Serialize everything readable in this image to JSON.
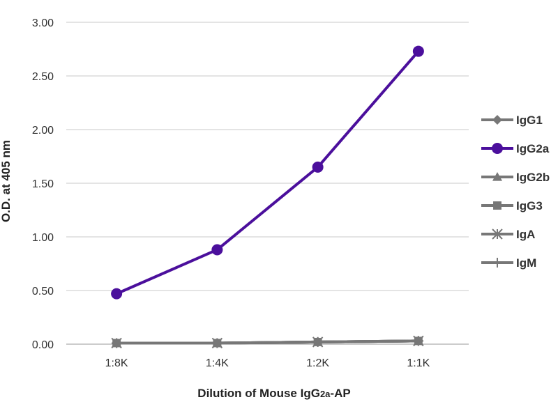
{
  "chart_data": {
    "type": "line",
    "title": "",
    "xlabel_main": "Dilution of Mouse IgG",
    "xlabel_sub": "2a",
    "xlabel_suffix": "-AP",
    "ylabel": "O.D. at 405 nm",
    "categories": [
      "1:8K",
      "1:4K",
      "1:2K",
      "1:1K"
    ],
    "ylim": [
      0,
      3
    ],
    "yticks": [
      "0.00",
      "0.50",
      "1.00",
      "1.50",
      "2.00",
      "2.50",
      "3.00"
    ],
    "grid": "horizontal",
    "legend_position": "right",
    "series": [
      {
        "name": "IgG1",
        "values": [
          0.01,
          0.01,
          0.02,
          0.03
        ],
        "color": "#777777",
        "marker": "diamond"
      },
      {
        "name": "IgG2a",
        "values": [
          0.47,
          0.88,
          1.65,
          2.73
        ],
        "color": "#4b0f9c",
        "marker": "circle"
      },
      {
        "name": "IgG2b",
        "values": [
          0.01,
          0.01,
          0.02,
          0.03
        ],
        "color": "#777777",
        "marker": "triangle"
      },
      {
        "name": "IgG3",
        "values": [
          0.01,
          0.01,
          0.02,
          0.03
        ],
        "color": "#777777",
        "marker": "square"
      },
      {
        "name": "IgA",
        "values": [
          0.01,
          0.01,
          0.02,
          0.03
        ],
        "color": "#777777",
        "marker": "star"
      },
      {
        "name": "IgM",
        "values": [
          0.01,
          0.01,
          0.02,
          0.03
        ],
        "color": "#777777",
        "marker": "plus"
      }
    ]
  }
}
